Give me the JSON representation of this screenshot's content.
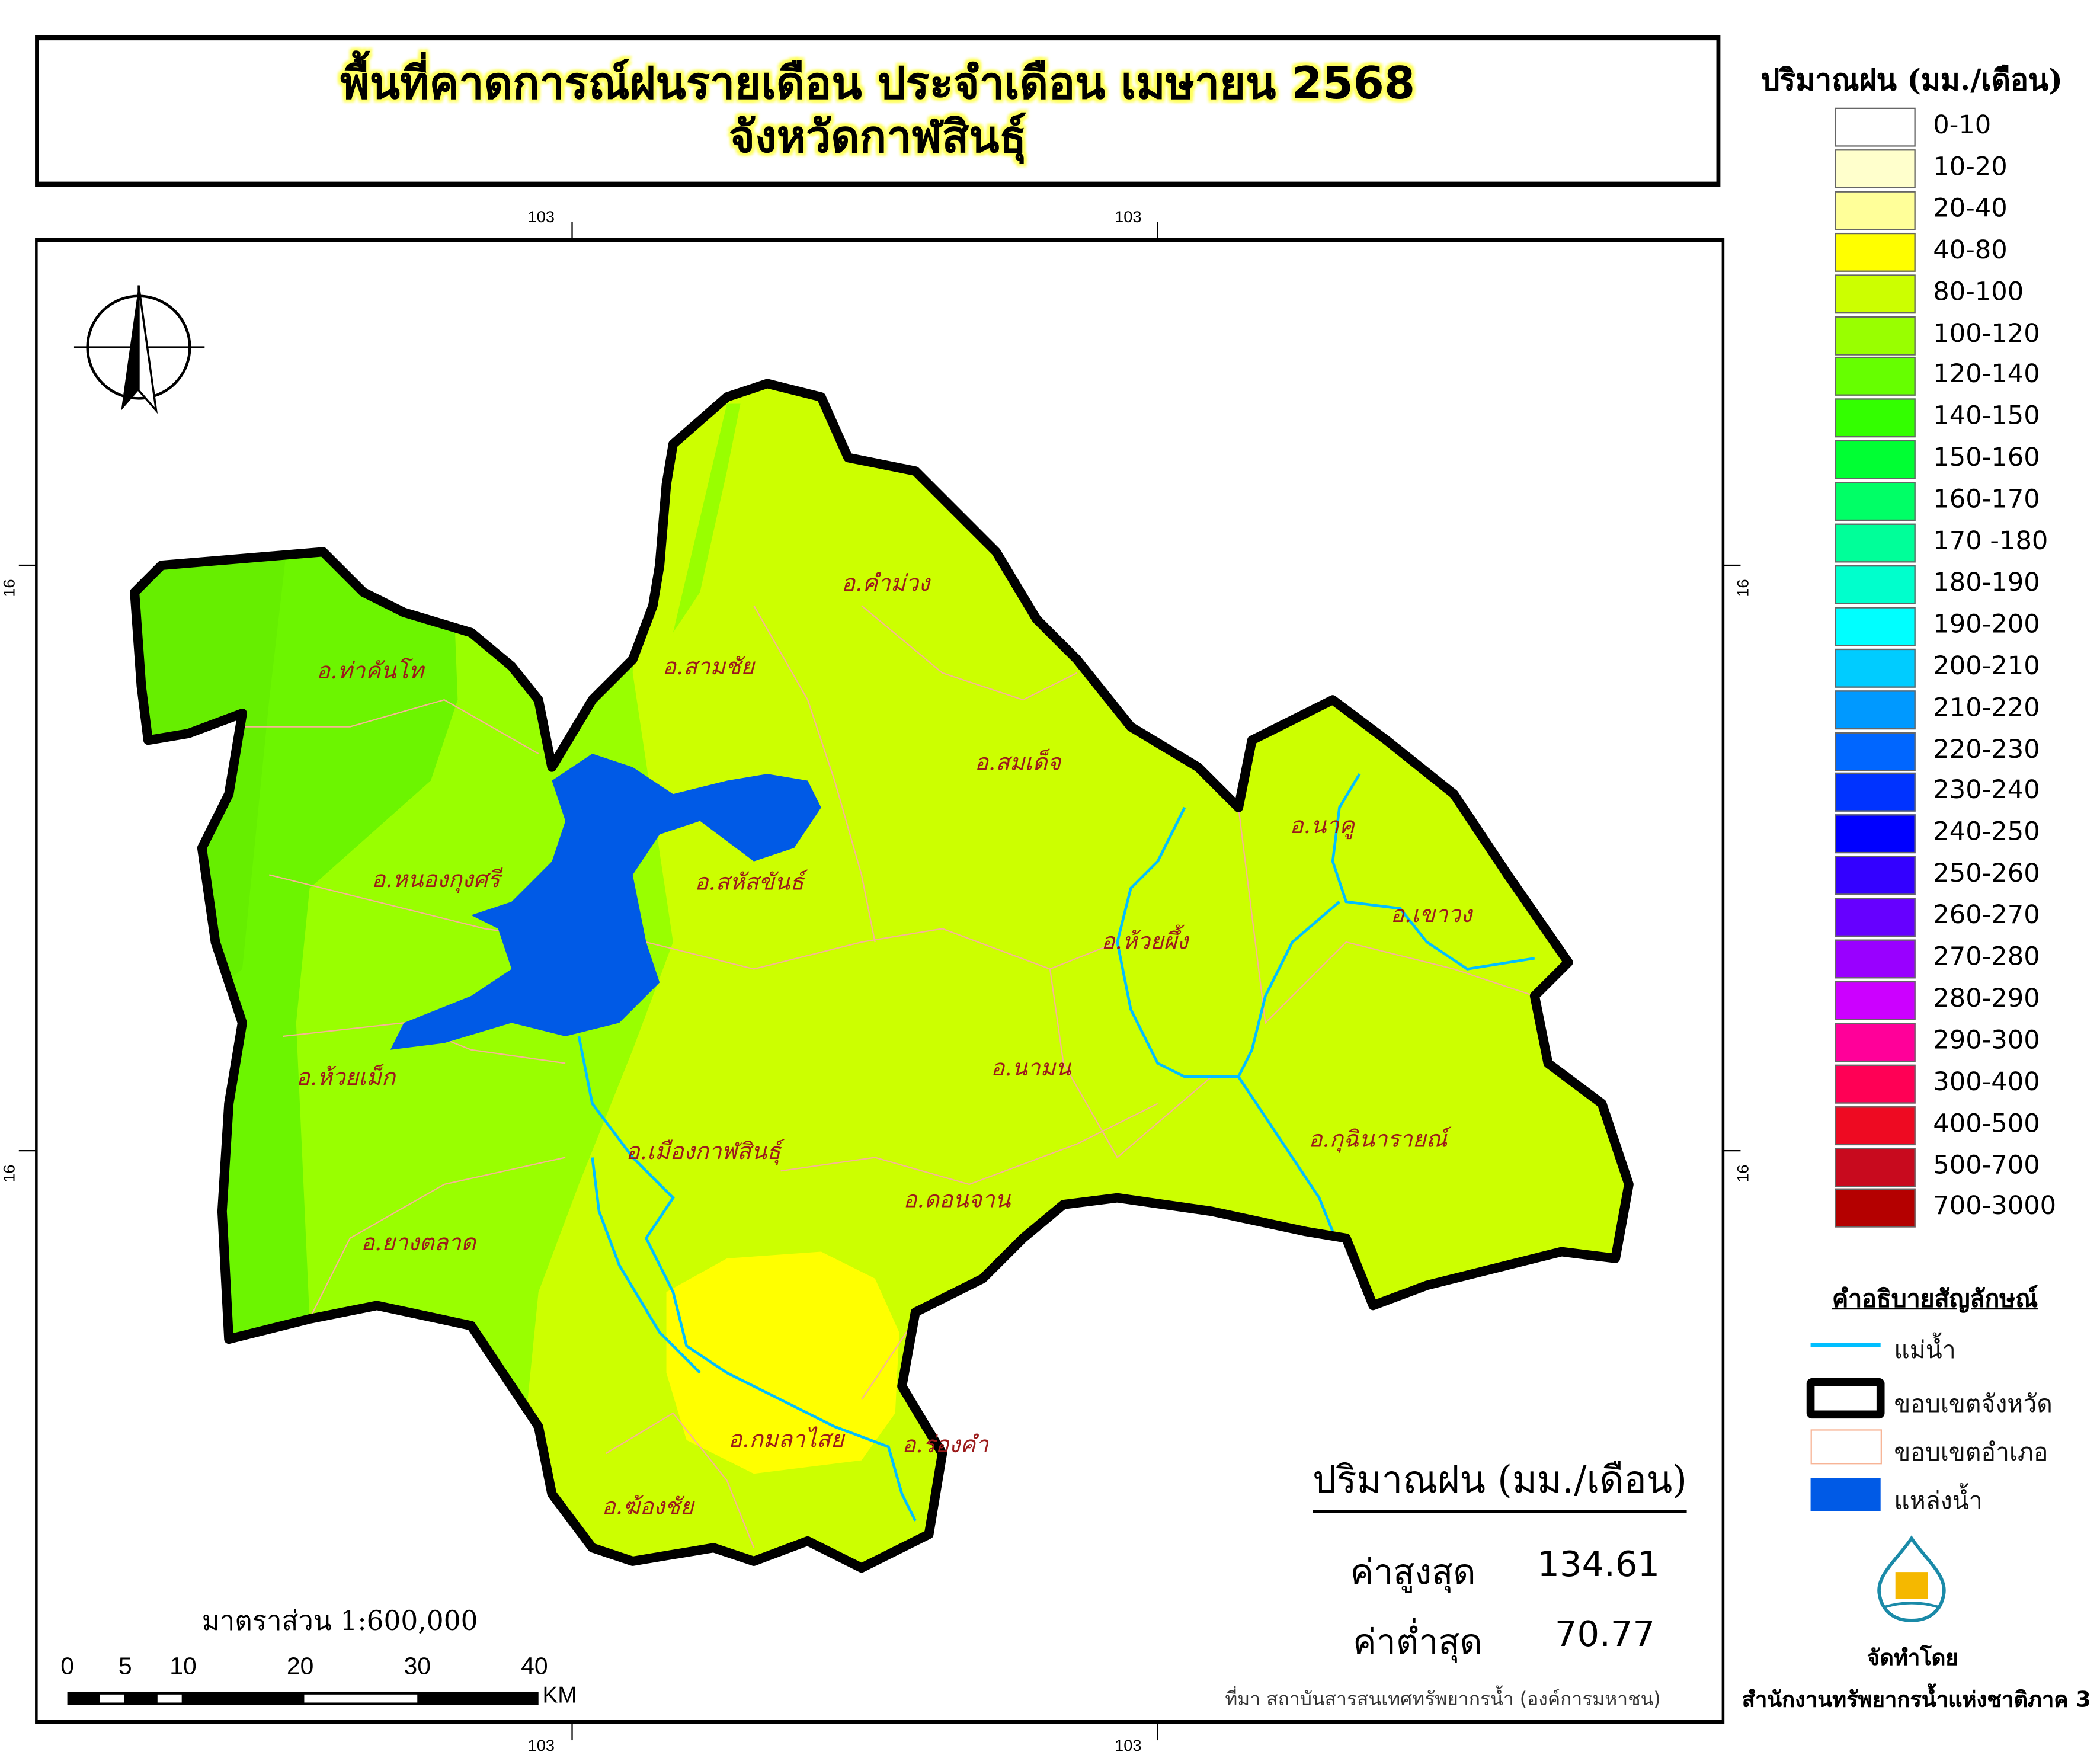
{
  "title": {
    "line1": "พื้นที่คาดการณ์ฝนรายเดือน ประจำเดือน เมษายน 2568",
    "line2": "จังหวัดกาฬสินธุ์"
  },
  "graticule": {
    "top": [
      "103",
      "103"
    ],
    "bottom": [
      "103",
      "103"
    ],
    "left": [
      "16",
      "16"
    ],
    "right": [
      "16",
      "16"
    ]
  },
  "north_arrow": {
    "label": "N"
  },
  "districts": [
    {
      "name": "อ.คำม่วง"
    },
    {
      "name": "อ.สามชัย"
    },
    {
      "name": "อ.ท่าคันโท"
    },
    {
      "name": "อ.สมเด็จ"
    },
    {
      "name": "อ.นาคู"
    },
    {
      "name": "อ.หนองกุงศรี"
    },
    {
      "name": "อ.สหัสขันธ์"
    },
    {
      "name": "อ.เขาวง"
    },
    {
      "name": "อ.ห้วยผึ้ง"
    },
    {
      "name": "อ.ห้วยเม็ก"
    },
    {
      "name": "อ.นามน"
    },
    {
      "name": "อ.กุฉินารายณ์"
    },
    {
      "name": "อ.เมืองกาฬสินธุ์"
    },
    {
      "name": "อ.ดอนจาน"
    },
    {
      "name": "อ.ยางตลาด"
    },
    {
      "name": "อ.กมลาไสย"
    },
    {
      "name": "อ.ร่องคำ"
    },
    {
      "name": "อ.ฆ้องชัย"
    }
  ],
  "rainfall_legend": {
    "title": "ปริมาณฝน (มม./เดือน)",
    "classes": [
      {
        "label": "0-10",
        "color": "#ffffff"
      },
      {
        "label": "10-20",
        "color": "#ffffcc"
      },
      {
        "label": "20-40",
        "color": "#ffff99"
      },
      {
        "label": "40-80",
        "color": "#ffff00"
      },
      {
        "label": "80-100",
        "color": "#ccff00"
      },
      {
        "label": "100-120",
        "color": "#99ff00"
      },
      {
        "label": "120-140",
        "color": "#66ff00"
      },
      {
        "label": "140-150",
        "color": "#33ff00"
      },
      {
        "label": "150-160",
        "color": "#00ff33"
      },
      {
        "label": "160-170",
        "color": "#00ff66"
      },
      {
        "label": "170 -180",
        "color": "#00ff99"
      },
      {
        "label": "180-190",
        "color": "#00ffcc"
      },
      {
        "label": "190-200",
        "color": "#00ffff"
      },
      {
        "label": "200-210",
        "color": "#00ccff"
      },
      {
        "label": "210-220",
        "color": "#0099ff"
      },
      {
        "label": "220-230",
        "color": "#0066ff"
      },
      {
        "label": "230-240",
        "color": "#0033ff"
      },
      {
        "label": "240-250",
        "color": "#0000ff"
      },
      {
        "label": "250-260",
        "color": "#3300ff"
      },
      {
        "label": "260-270",
        "color": "#6600ff"
      },
      {
        "label": "270-280",
        "color": "#9900ff"
      },
      {
        "label": "280-290",
        "color": "#cc00ff"
      },
      {
        "label": "290-300",
        "color": "#ff0099"
      },
      {
        "label": "300-400",
        "color": "#ff0055"
      },
      {
        "label": "400-500",
        "color": "#ee0a22"
      },
      {
        "label": "500-700",
        "color": "#c80a1e"
      },
      {
        "label": "700-3000",
        "color": "#b40000"
      }
    ]
  },
  "symbol_legend": {
    "title": "คำอธิบายสัญลักษณ์",
    "items": [
      {
        "label": "แม่น้ำ",
        "color": "#00bfff"
      },
      {
        "label": "ขอบเขตจังหวัด",
        "color": "#000000"
      },
      {
        "label": "ขอบเขตอำเภอ",
        "color": "#f7b496"
      },
      {
        "label": "แหล่งน้ำ",
        "color": "#005ae6"
      }
    ]
  },
  "stats": {
    "title": "ปริมาณฝน (มม./เดือน)",
    "max_label": "ค่าสูงสุด",
    "max_value": "134.61",
    "min_label": "ค่าต่ำสุด",
    "min_value": "70.77"
  },
  "scale": {
    "text": "มาตราส่วน 1:600,000",
    "ticks": [
      "0",
      "5",
      "10",
      "20",
      "30",
      "40"
    ],
    "unit": "KM"
  },
  "source": "ที่มา  สถาบันสารสนเทศทรัพยากรน้ำ (องค์การมหาชน)",
  "credit": {
    "prepared_by": "จัดทำโดย",
    "organization": "สำนักงานทรัพยากรน้ำแห่งชาติภาค 3",
    "logo_text": "สำนักงานทรัพยากรน้ำแห่งชาติ"
  }
}
